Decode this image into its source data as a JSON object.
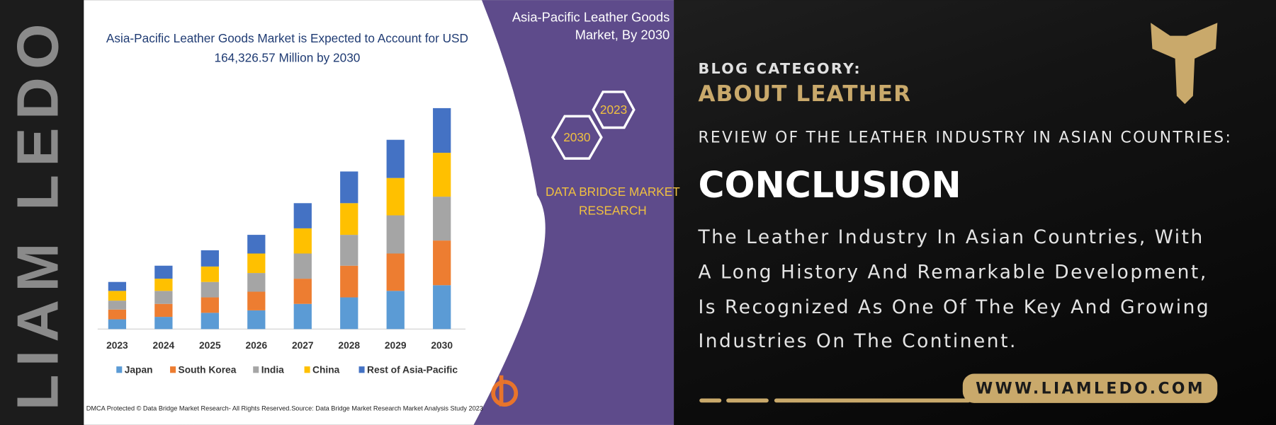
{
  "chart_data": {
    "type": "bar",
    "stacked": true,
    "title_lines": [
      "Asia-Pacific Leather Goods Market is Expected to Account for USD",
      "164,326.57 Million by 2030"
    ],
    "categories": [
      "2023",
      "2024",
      "2025",
      "2026",
      "2027",
      "2028",
      "2029",
      "2030"
    ],
    "series": [
      {
        "name": "Japan",
        "color": "#5b9bd5",
        "values": [
          12,
          15,
          20,
          23,
          31,
          39,
          47,
          54
        ]
      },
      {
        "name": "South Korea",
        "color": "#ed7d31",
        "values": [
          12,
          16,
          19,
          23,
          31,
          39,
          46,
          55
        ]
      },
      {
        "name": "India",
        "color": "#a5a5a5",
        "values": [
          11,
          16,
          19,
          23,
          31,
          38,
          47,
          54
        ]
      },
      {
        "name": "China",
        "color": "#ffc000",
        "values": [
          12,
          15,
          19,
          24,
          31,
          39,
          46,
          54
        ]
      },
      {
        "name": "Rest of Asia-Pacific",
        "color": "#4472c4",
        "values": [
          11,
          16,
          20,
          23,
          31,
          39,
          47,
          55
        ]
      }
    ],
    "footnotes": [
      "DMCA Protected © Data Bridge Market Research- All Rights Reserved.",
      "Source: Data Bridge Market Research Market Analysis Study 2023"
    ]
  },
  "banner": {
    "side_text": "LIAM LEDO",
    "panel_title_lines": [
      "Asia-Pacific Leather Goods",
      "Market, By 2030"
    ],
    "hex_labels": [
      "2023",
      "2030"
    ],
    "brand_lines": [
      "DATA BRIDGE MARKET",
      "RESEARCH"
    ],
    "category_label": "BLOG CATEGORY:",
    "category": "ABOUT LEATHER",
    "subtitle": "REVIEW OF THE LEATHER INDUSTRY IN ASIAN COUNTRIES:",
    "heading": "CONCLUSION",
    "paragraph_lines": [
      "The Leather Industry In Asian Countries, With",
      "A Long History And Remarkable Development,",
      "Is Recognized As One Of The Key And Growing",
      "Industries On The Continent."
    ],
    "website": "WWW.LIAMLEDO.COM"
  }
}
